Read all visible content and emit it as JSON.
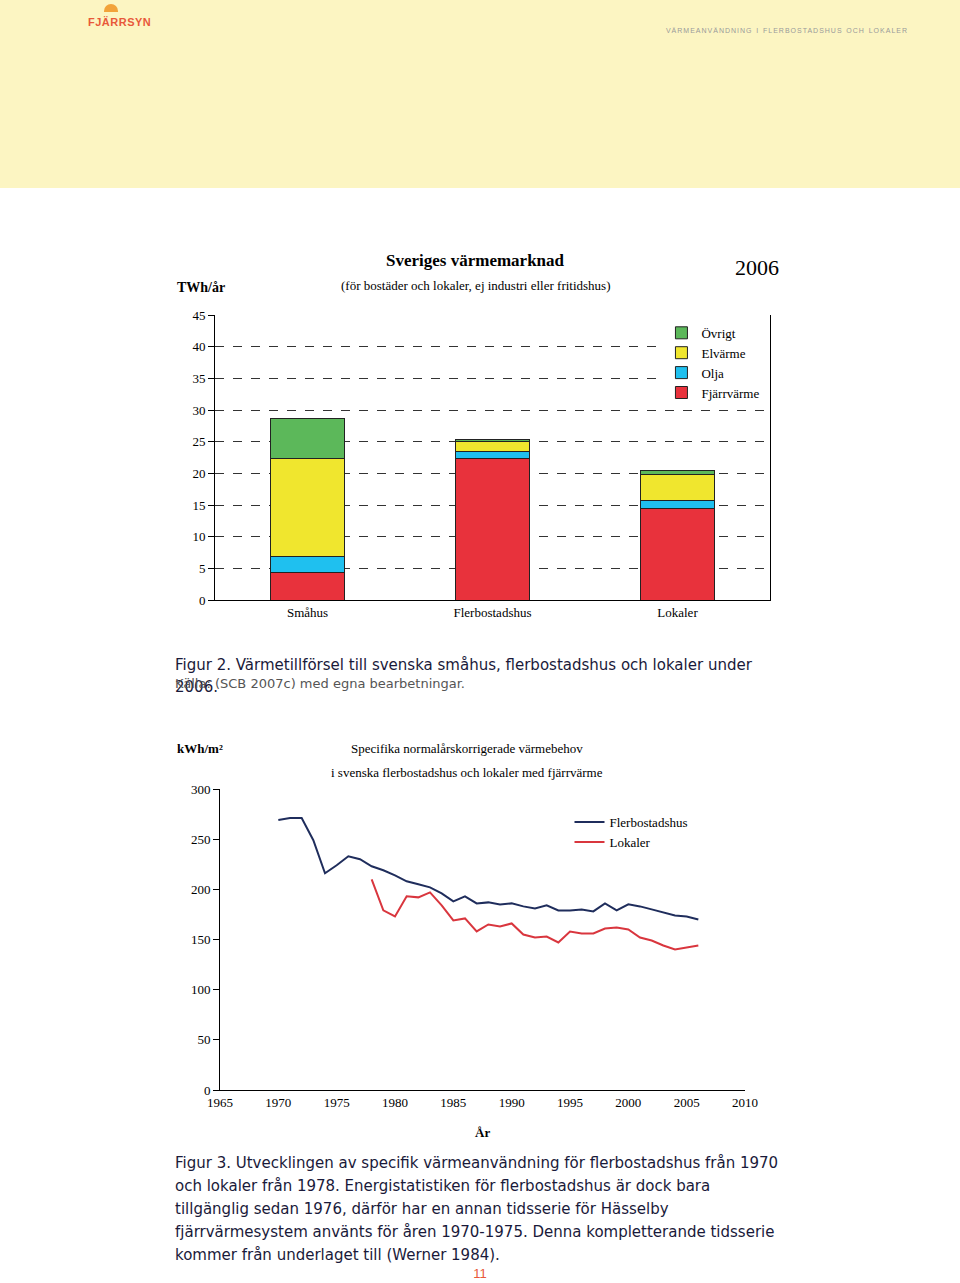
{
  "page": {
    "brand": "FJÄRRSYN",
    "running_head": "värmeanvändning i flerbostadshus och lokaler",
    "page_number": "11"
  },
  "chart_data": [
    {
      "type": "bar",
      "stacked": true,
      "title": "Sveriges värmemarknad",
      "subtitle": "(för bostäder och lokaler, ej industri eller fritidshus)",
      "y_label": "TWh/år",
      "annotations": [
        {
          "text": "2006"
        }
      ],
      "categories": [
        "Småhus",
        "Flerbostadshus",
        "Lokaler"
      ],
      "series": [
        {
          "name": "Fjärrvärme",
          "color": "#e8323c",
          "values": [
            4.4,
            22.3,
            14.4
          ]
        },
        {
          "name": "Olja",
          "color": "#1fc0ef",
          "values": [
            2.5,
            1.1,
            1.3
          ]
        },
        {
          "name": "Elvärme",
          "color": "#f0e62e",
          "values": [
            15.5,
            1.7,
            4.1
          ]
        },
        {
          "name": "Övrigt",
          "color": "#5cb85a",
          "values": [
            6.3,
            0.3,
            0.6
          ]
        }
      ],
      "ylim": [
        0,
        45
      ],
      "yticks": [
        0,
        5,
        10,
        15,
        20,
        25,
        30,
        35,
        40,
        45
      ],
      "grid": true,
      "legend": "upper right"
    },
    {
      "type": "line",
      "title": "Specifika normalårskorrigerade värmebehov",
      "subtitle": "i svenska flerbostadshus och lokaler med fjärrvärme",
      "x_label": "År",
      "y_label": "kWh/m²",
      "x": [
        1970,
        1971,
        1972,
        1973,
        1974,
        1975,
        1976,
        1977,
        1978,
        1979,
        1980,
        1981,
        1982,
        1983,
        1984,
        1985,
        1986,
        1987,
        1988,
        1989,
        1990,
        1991,
        1992,
        1993,
        1994,
        1995,
        1996,
        1997,
        1998,
        1999,
        2000,
        2001,
        2002,
        2003,
        2004,
        2005,
        2006
      ],
      "series": [
        {
          "name": "Flerbostadshus",
          "color": "#1f2d5c",
          "values": [
            269,
            271,
            271,
            249,
            216,
            224,
            233,
            230,
            223,
            219,
            214,
            208,
            205,
            202,
            196,
            188,
            193,
            186,
            187,
            185,
            186,
            183,
            181,
            184,
            179,
            179,
            180,
            178,
            186,
            179,
            185,
            183,
            180,
            177,
            174,
            173,
            170
          ]
        },
        {
          "name": "Lokaler",
          "color": "#d9363e",
          "values": [
            null,
            null,
            null,
            null,
            null,
            null,
            null,
            null,
            210,
            179,
            173,
            193,
            192,
            197,
            184,
            169,
            171,
            158,
            165,
            163,
            166,
            155,
            152,
            153,
            147,
            158,
            156,
            156,
            161,
            162,
            160,
            152,
            149,
            144,
            140,
            142,
            144
          ]
        }
      ],
      "xlim": [
        1965,
        2010
      ],
      "xticks": [
        1965,
        1970,
        1975,
        1980,
        1985,
        1990,
        1995,
        2000,
        2005,
        2010
      ],
      "ylim": [
        0,
        300
      ],
      "yticks": [
        0,
        50,
        100,
        150,
        200,
        250,
        300
      ],
      "grid": false,
      "legend": "upper right"
    }
  ],
  "captions": [
    "Figur 2. Värmetillförsel till svenska småhus, flerbostadshus och lokaler under 2006.",
    "Källa: (SCB 2007c) med egna bearbetningar.",
    "Figur 3. Utvecklingen av specifik värmeanvändning för flerbostadshus från 1970 och lokaler från 1978. Energistatistiken för flerbostadshus är dock bara tillgänglig sedan 1976, därför har en annan tidsserie för Hässelby fjärrvärmesystem använts för åren 1970-1975. Denna kompletterande tidsserie kommer från underlaget till (Werner 1984)."
  ]
}
